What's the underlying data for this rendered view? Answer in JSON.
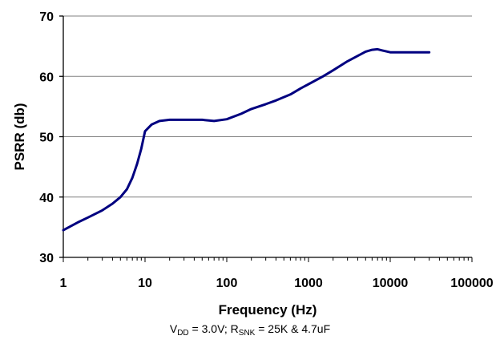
{
  "chart_data": {
    "type": "line",
    "xscale": "log",
    "xlabel": "Frequency (Hz)",
    "ylabel": "PSRR (db)",
    "xlim": [
      1,
      100000
    ],
    "ylim": [
      30,
      70
    ],
    "x_ticks": [
      1,
      10,
      100,
      1000,
      10000,
      100000
    ],
    "x_tick_labels": [
      "1",
      "10",
      "100",
      "1000",
      "10000",
      "100000"
    ],
    "y_ticks": [
      30,
      40,
      50,
      60,
      70
    ],
    "y_tick_labels": [
      "30",
      "40",
      "50",
      "60",
      "70"
    ],
    "grid": "horizontal",
    "line_color": "#000080",
    "series": [
      {
        "x": [
          1,
          1.5,
          2,
          3,
          4,
          5,
          6,
          7,
          8,
          9,
          10,
          12,
          15,
          20,
          30,
          50,
          70,
          100,
          150,
          200,
          300,
          400,
          600,
          800,
          1000,
          1500,
          2000,
          3000,
          4000,
          5000,
          6000,
          7000,
          8000,
          10000,
          15000,
          20000,
          30000
        ],
        "y": [
          34.5,
          35.8,
          36.6,
          37.8,
          38.9,
          40.0,
          41.3,
          43.2,
          45.5,
          48.0,
          50.9,
          52.0,
          52.6,
          52.8,
          52.8,
          52.8,
          52.6,
          52.9,
          53.8,
          54.6,
          55.4,
          56.0,
          57.0,
          58.0,
          58.7,
          60.0,
          61.0,
          62.5,
          63.4,
          64.1,
          64.4,
          64.5,
          64.3,
          64.0,
          64.0,
          64.0,
          64.0
        ]
      }
    ],
    "caption": {
      "parts": [
        {
          "text": "V"
        },
        {
          "sub": "DD"
        },
        {
          "text": " = 3.0V; R"
        },
        {
          "sub": "SNK"
        },
        {
          "text": " = 25K & 4.7uF"
        }
      ]
    }
  }
}
